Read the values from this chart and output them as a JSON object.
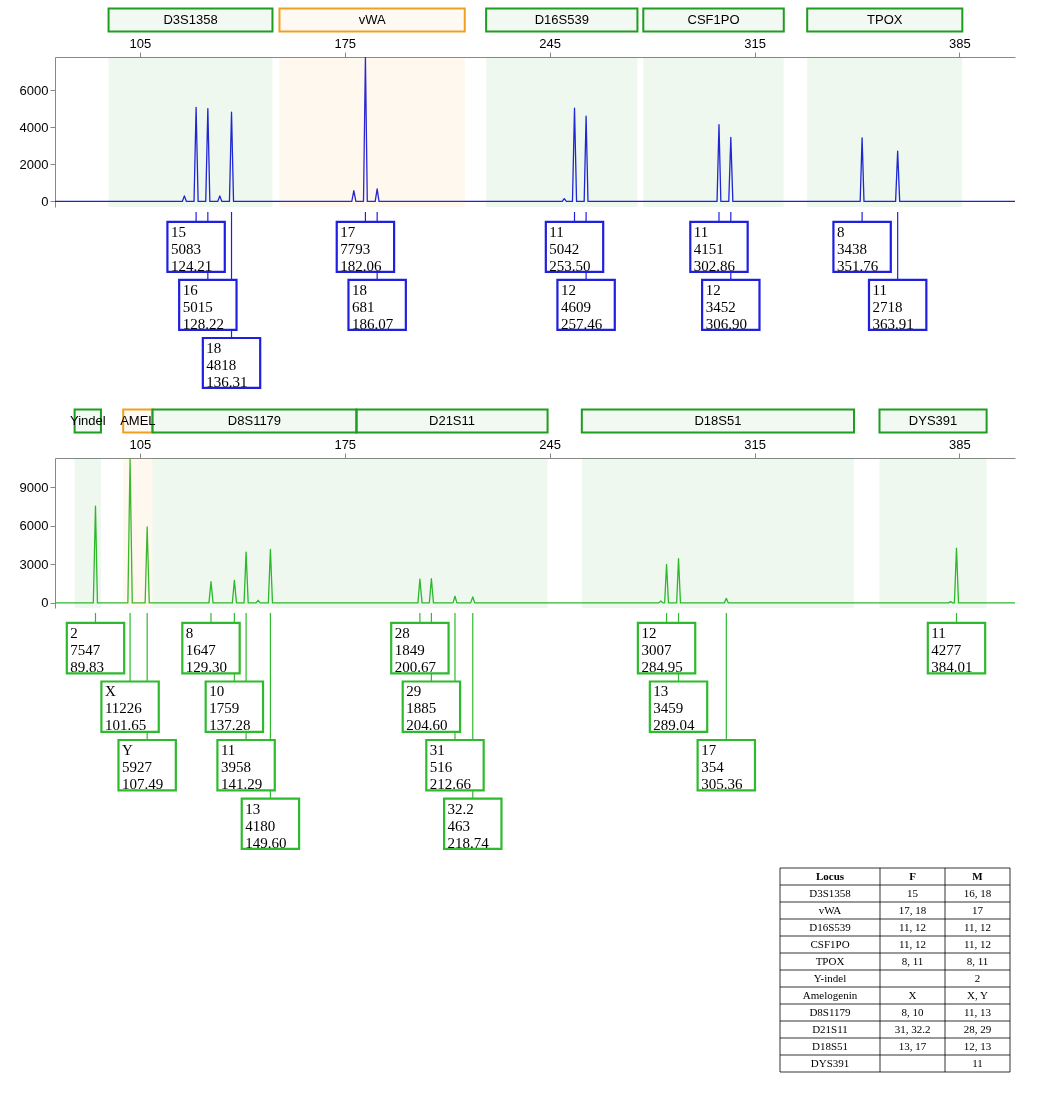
{
  "chart_data": [
    {
      "type": "line",
      "xlim": [
        76,
        404
      ],
      "xticks": [
        105,
        175,
        245,
        315,
        385
      ],
      "ylim": [
        -300,
        7800
      ],
      "yticks": [
        0,
        2000,
        4000,
        6000
      ],
      "bands": [
        {
          "axis": "x",
          "from": 94.3,
          "to": 150.3,
          "label": "D3S1358",
          "color": "#1e9e1e"
        },
        {
          "axis": "x",
          "from": 152.7,
          "to": 216,
          "label": "vWA",
          "color": "#f0a020"
        },
        {
          "axis": "x",
          "from": 223.3,
          "to": 275,
          "label": "D16S539",
          "color": "#1e9e1e"
        },
        {
          "axis": "x",
          "from": 277,
          "to": 325,
          "label": "CSF1PO",
          "color": "#1e9e1e"
        },
        {
          "axis": "x",
          "from": 333,
          "to": 386,
          "label": "TPOX",
          "color": "#1e9e1e"
        }
      ],
      "series": [
        {
          "color": "#1f1fe0",
          "x": [
            76,
            119.5,
            120.2,
            120.9,
            123.5,
            124.21,
            124.9,
            127.5,
            128.22,
            128.9,
            131.6,
            132.3,
            133,
            135.6,
            136.31,
            137,
            177.4,
            178.1,
            178.8,
            181.4,
            182.06,
            182.7,
            185.4,
            186.07,
            186.7,
            249.3,
            250,
            250.7,
            252.8,
            253.5,
            254.2,
            256.8,
            257.46,
            258.1,
            302.2,
            302.86,
            303.5,
            306.2,
            306.9,
            307.6,
            351.1,
            351.76,
            352.4,
            363.2,
            363.91,
            364.6,
            404
          ],
          "values": [
            0,
            0,
            300,
            0,
            0,
            5083,
            0,
            0,
            5015,
            0,
            0,
            300,
            0,
            0,
            4818,
            0,
            0,
            580,
            0,
            0,
            7793,
            0,
            0,
            681,
            0,
            0,
            150,
            0,
            0,
            5042,
            0,
            0,
            4609,
            0,
            0,
            4151,
            0,
            0,
            3452,
            0,
            0,
            3438,
            0,
            0,
            2718,
            0,
            0
          ]
        }
      ],
      "annotations": [
        {
          "text": "15\n5083\n124.21",
          "x": 124.21
        },
        {
          "text": "16\n5015\n128.22",
          "x": 128.22
        },
        {
          "text": "18\n4818\n136.31",
          "x": 136.31
        },
        {
          "text": "17\n7793\n182.06",
          "x": 182.06
        },
        {
          "text": "18\n681\n186.07",
          "x": 186.07
        },
        {
          "text": "11\n5042\n253.50",
          "x": 253.5
        },
        {
          "text": "12\n4609\n257.46",
          "x": 257.46
        },
        {
          "text": "11\n4151\n302.86",
          "x": 302.86
        },
        {
          "text": "12\n3452\n306.90",
          "x": 306.9
        },
        {
          "text": "8\n3438\n351.76",
          "x": 351.76
        },
        {
          "text": "11\n2718\n363.91",
          "x": 363.91
        }
      ]
    },
    {
      "type": "line",
      "xlim": [
        76,
        404
      ],
      "xticks": [
        105,
        175,
        245,
        315,
        385
      ],
      "ylim": [
        -400,
        11300
      ],
      "yticks": [
        0,
        3000,
        6000,
        9000
      ],
      "bands": [
        {
          "axis": "x",
          "from": 82.7,
          "to": 91.7,
          "label": "Yindel",
          "color": "#1e9e1e"
        },
        {
          "axis": "x",
          "from": 99.3,
          "to": 109.3,
          "label": "AMEL",
          "color": "#f0a020"
        },
        {
          "axis": "x",
          "from": 109.3,
          "to": 179,
          "label": "D8S1179",
          "color": "#1e9e1e"
        },
        {
          "axis": "x",
          "from": 179,
          "to": 244.3,
          "label": "D21S11",
          "color": "#1e9e1e"
        },
        {
          "axis": "x",
          "from": 256,
          "to": 349,
          "label": "D18S51",
          "color": "#1e9e1e"
        },
        {
          "axis": "x",
          "from": 357.7,
          "to": 394.3,
          "label": "DYS391",
          "color": "#1e9e1e"
        }
      ],
      "series": [
        {
          "color": "#2dbb2d",
          "x": [
            76,
            89.1,
            89.83,
            90.5,
            100.9,
            101.65,
            102.4,
            106.8,
            107.49,
            108.2,
            128.6,
            129.3,
            130,
            136.6,
            137.28,
            138,
            140.6,
            141.29,
            142,
            144.7,
            145.4,
            146.1,
            148.9,
            149.6,
            150.3,
            200,
            200.67,
            201.4,
            203.9,
            204.6,
            205.3,
            212,
            212.66,
            213.3,
            218,
            218.74,
            219.4,
            282.3,
            283,
            283.7,
            284.3,
            284.95,
            285.6,
            288.4,
            289.04,
            289.7,
            304.7,
            305.36,
            306,
            381.3,
            382,
            382.7,
            383.3,
            384.01,
            384.7,
            404
          ],
          "values": [
            0,
            0,
            7547,
            0,
            0,
            11226,
            0,
            0,
            5927,
            0,
            0,
            1647,
            0,
            0,
            1759,
            0,
            0,
            3958,
            0,
            0,
            200,
            0,
            0,
            4180,
            0,
            0,
            1849,
            0,
            0,
            1885,
            0,
            0,
            516,
            0,
            0,
            463,
            0,
            0,
            150,
            0,
            0,
            3007,
            0,
            0,
            3459,
            0,
            0,
            354,
            0,
            0,
            100,
            0,
            0,
            4277,
            0,
            0
          ]
        }
      ],
      "annotations": [
        {
          "text": "2\n7547\n89.83",
          "x": 89.83
        },
        {
          "text": "X\n11226\n101.65",
          "x": 101.65
        },
        {
          "text": "Y\n5927\n107.49",
          "x": 107.49
        },
        {
          "text": "8\n1647\n129.30",
          "x": 129.3
        },
        {
          "text": "10\n1759\n137.28",
          "x": 137.28
        },
        {
          "text": "11\n3958\n141.29",
          "x": 141.29
        },
        {
          "text": "13\n4180\n149.60",
          "x": 149.6
        },
        {
          "text": "28\n1849\n200.67",
          "x": 200.67
        },
        {
          "text": "29\n1885\n204.60",
          "x": 204.6
        },
        {
          "text": "31\n516\n212.66",
          "x": 212.66
        },
        {
          "text": "32.2\n463\n218.74",
          "x": 218.74
        },
        {
          "text": "12\n3007\n284.95",
          "x": 284.95
        },
        {
          "text": "13\n3459\n289.04",
          "x": 289.04
        },
        {
          "text": "17\n354\n305.36",
          "x": 305.36
        },
        {
          "text": "11\n4277\n384.01",
          "x": 384.01
        }
      ]
    },
    {
      "type": "other",
      "categories": [
        "Locus",
        "F",
        "M"
      ],
      "y_categories": [
        "D3S1358",
        "vWA",
        "D16S539",
        "CSF1PO",
        "TPOX",
        "Y-indel",
        "Amelogenin",
        "D8S1179",
        "D21S11",
        "D18S51",
        "DYS391"
      ],
      "cell_labels": [
        [
          "15",
          "16, 18"
        ],
        [
          "17, 18",
          "17"
        ],
        [
          "11, 12",
          "11, 12"
        ],
        [
          "11, 12",
          "11, 12"
        ],
        [
          "8, 11",
          "8, 11"
        ],
        [
          null,
          "2"
        ],
        [
          "X",
          "X, Y"
        ],
        [
          "8, 10",
          "11, 13"
        ],
        [
          "31, 32.2",
          "28, 29"
        ],
        [
          "13, 17",
          "12, 13"
        ],
        [
          null,
          "11"
        ]
      ]
    }
  ]
}
